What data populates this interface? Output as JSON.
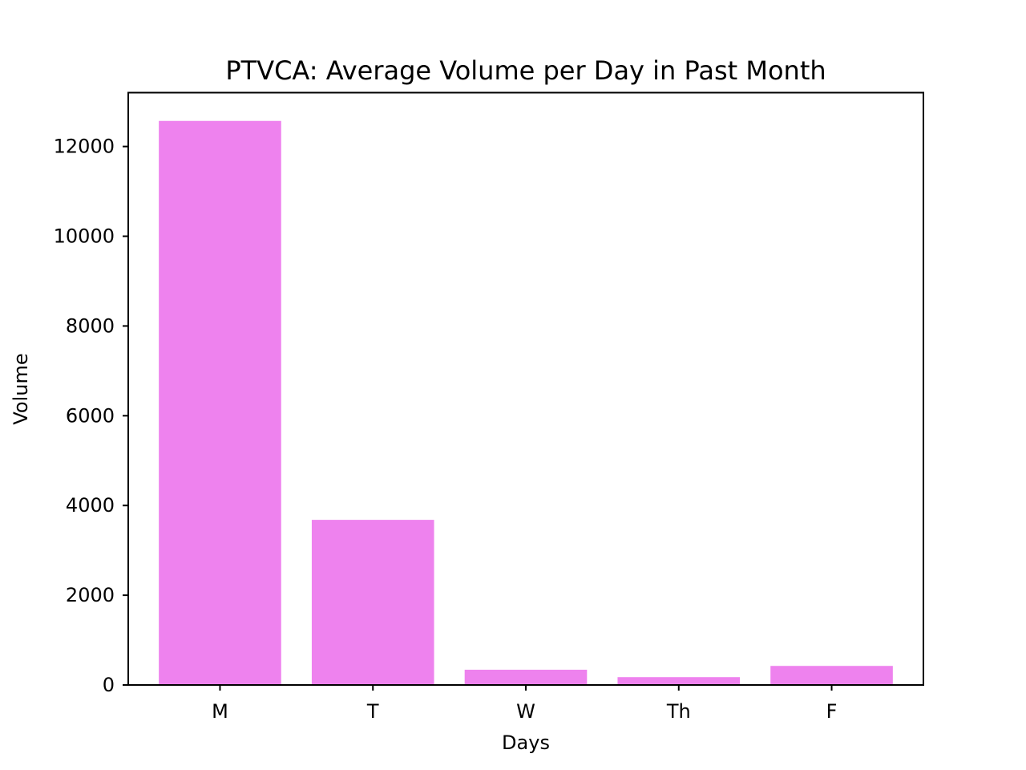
{
  "chart_data": {
    "type": "bar",
    "title": "PTVCA: Average Volume per Day in Past Month",
    "xlabel": "Days",
    "ylabel": "Volume",
    "categories": [
      "M",
      "T",
      "W",
      "Th",
      "F"
    ],
    "values": [
      12570,
      3680,
      340,
      175,
      425
    ],
    "ylim": [
      0,
      13200
    ],
    "yticks": [
      0,
      2000,
      4000,
      6000,
      8000,
      10000,
      12000
    ],
    "ytick_labels": [
      "0",
      "2000",
      "4000",
      "6000",
      "8000",
      "10000",
      "12000"
    ],
    "bar_color": "#ee82ee",
    "grid": false,
    "legend": "none"
  }
}
